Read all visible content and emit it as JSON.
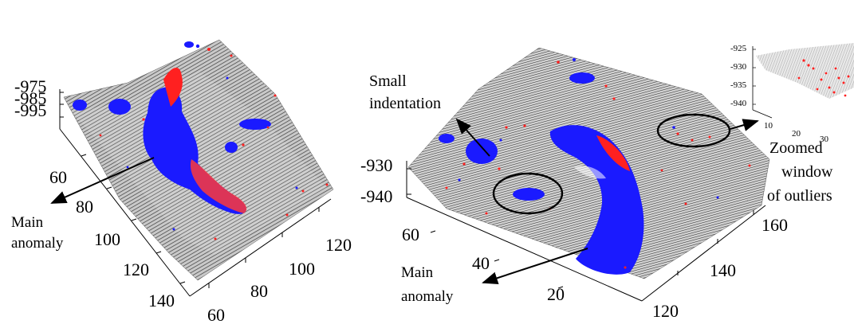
{
  "colors": {
    "inlier": "#ff2020",
    "outlier": "#1a1aff",
    "surface": "#8a8a8a"
  },
  "left_panel": {
    "z_ticks": [
      "-975",
      "-985",
      "-995"
    ],
    "y_ticks": [
      "60",
      "80",
      "100",
      "120",
      "140"
    ],
    "x_ticks": [
      "60",
      "80",
      "100",
      "120"
    ],
    "annotation": {
      "line1": "Main",
      "line2": "anomaly"
    }
  },
  "right_panel": {
    "z_ticks": [
      "-930",
      "-940"
    ],
    "y_ticks": [
      "60",
      "40",
      "20"
    ],
    "x_ticks": [
      "120",
      "140",
      "160"
    ],
    "annotations": {
      "small_indentation": {
        "line1": "Small",
        "line2": "indentation"
      },
      "main_anomaly": {
        "line1": "Main",
        "line2": "anomaly"
      },
      "zoomed_window": {
        "line1": "Zoomed",
        "line2": "window",
        "line3": "of outliers"
      }
    }
  },
  "inset": {
    "z_ticks": [
      "-925",
      "-930",
      "-935",
      "-940"
    ],
    "x_ticks": [
      "10",
      "20",
      "30"
    ]
  }
}
